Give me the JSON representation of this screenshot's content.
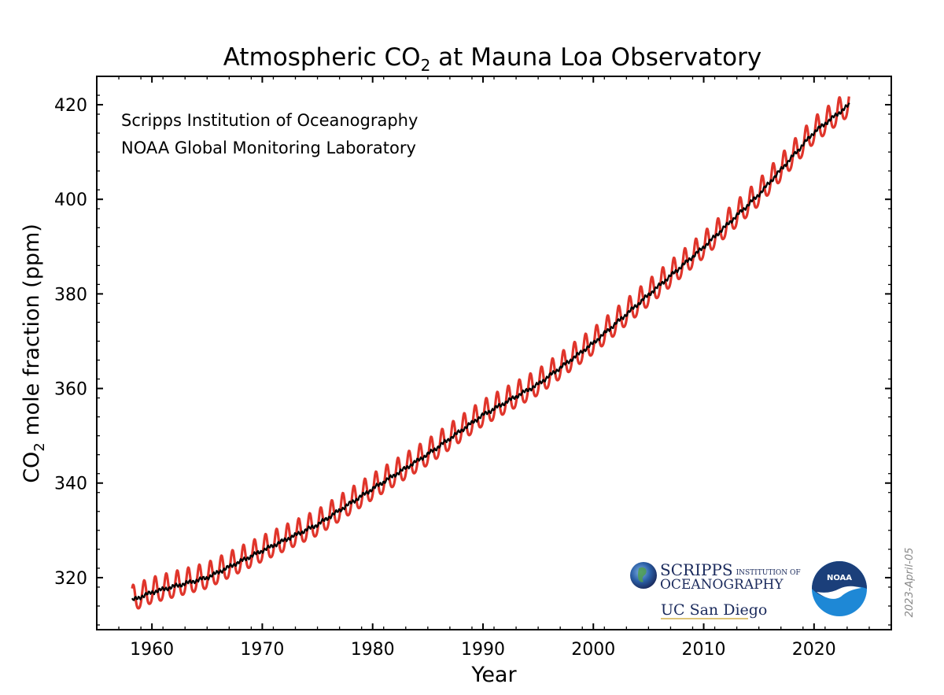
{
  "chart_data": {
    "type": "line",
    "title": "Atmospheric CO",
    "title_sub": "2",
    "title_rest": " at Mauna Loa Observatory",
    "xlabel": "Year",
    "ylabel": "CO",
    "ylabel_sub": "2",
    "ylabel_rest": " mole fraction (ppm)",
    "xlim": [
      1955,
      2027
    ],
    "ylim": [
      309,
      426
    ],
    "x_ticks": [
      1960,
      1970,
      1980,
      1990,
      2000,
      2010,
      2020
    ],
    "y_ticks": [
      320,
      340,
      360,
      380,
      400,
      420
    ],
    "grid": false,
    "annotations": [
      "Scripps Institution of Oceanography",
      "NOAA Global Monitoring Laboratory"
    ],
    "date_stamp": "2023-April-05",
    "series": [
      {
        "role": "monthly",
        "color": "#e0352b",
        "x_start": 1958.21,
        "x_end": 2023.2,
        "seasonal_amplitude_ppm": 3.2
      },
      {
        "role": "trend",
        "color": "#000000",
        "x": [
          1958.2,
          1960,
          1965,
          1970,
          1975,
          1980,
          1985,
          1990,
          1995,
          2000,
          2005,
          2010,
          2015,
          2020,
          2023.2
        ],
        "y": [
          315.2,
          316.9,
          320.0,
          325.7,
          331.2,
          338.8,
          346.1,
          354.4,
          360.9,
          369.6,
          379.8,
          389.9,
          401.0,
          414.2,
          420.0
        ]
      }
    ]
  },
  "logos": {
    "scripps_line1": "SCRIPPS",
    "scripps_line1_small": "INSTITUTION OF",
    "scripps_line2": "OCEANOGRAPHY",
    "ucsd": "UC San Diego",
    "noaa": "NOAA"
  },
  "colors": {
    "monthly": "#e0352b",
    "trend": "#000000",
    "noaa_blue": "#1e88d6",
    "noaa_navy": "#1b3f7a",
    "scripps_navy": "#1a2a5c"
  }
}
